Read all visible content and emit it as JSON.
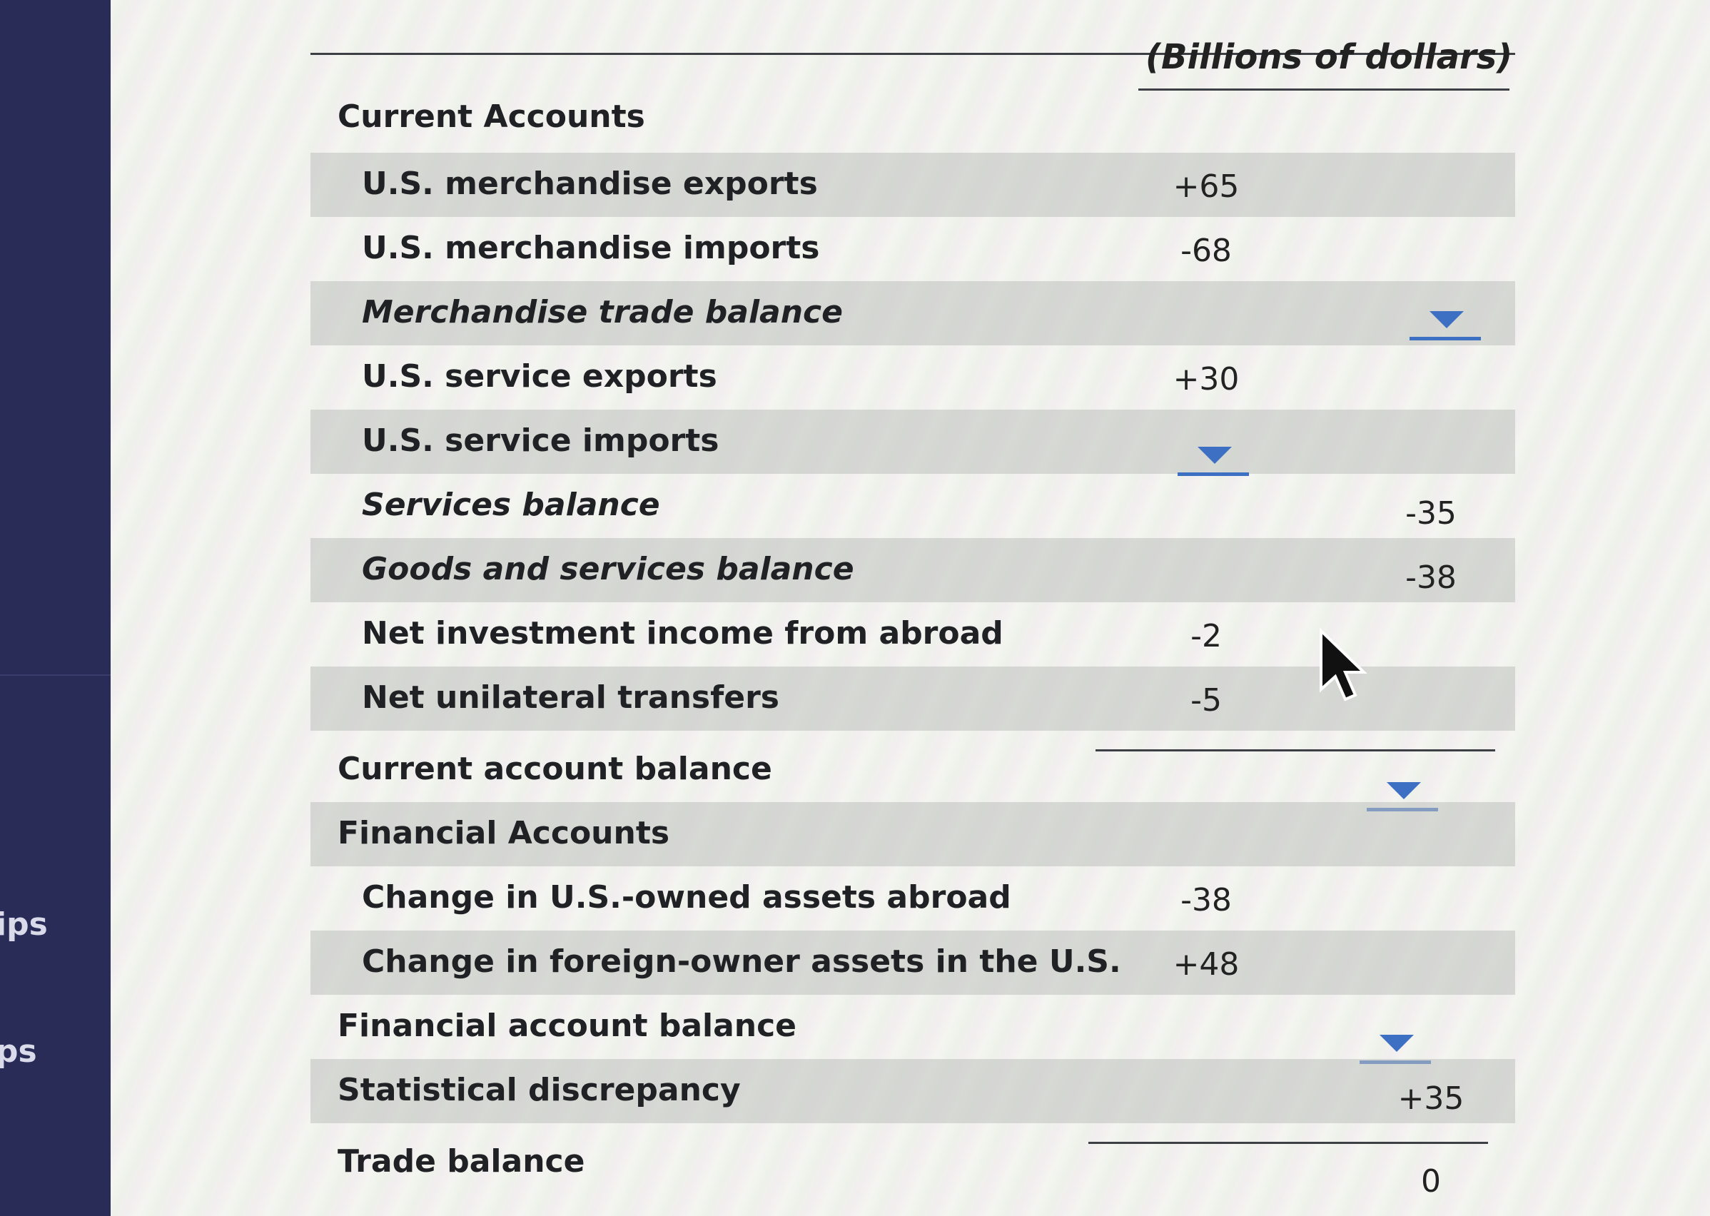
{
  "sidebar": {
    "items": [
      "ips",
      "ps"
    ]
  },
  "table": {
    "header": "(Billions of dollars)",
    "rows": [
      {
        "label": "Current Accounts",
        "v1": "",
        "v2": ""
      },
      {
        "label": "U.S. merchandise exports",
        "v1": "+65",
        "v2": ""
      },
      {
        "label": "U.S. merchandise imports",
        "v1": "-68",
        "v2": ""
      },
      {
        "label": "Merchandise trade balance",
        "v1": "",
        "v2": ""
      },
      {
        "label": "U.S. service exports",
        "v1": "+30",
        "v2": ""
      },
      {
        "label": "U.S. service imports",
        "v1": "",
        "v2": ""
      },
      {
        "label": "Services balance",
        "v1": "",
        "v2": "-35"
      },
      {
        "label": "Goods and services balance",
        "v1": "",
        "v2": "-38"
      },
      {
        "label": "Net investment income from abroad",
        "v1": "-2",
        "v2": ""
      },
      {
        "label": "Net unilateral transfers",
        "v1": "-5",
        "v2": ""
      },
      {
        "label": "Current account balance",
        "v1": "",
        "v2": ""
      },
      {
        "label": "Financial Accounts",
        "v1": "",
        "v2": ""
      },
      {
        "label": "Change in U.S.-owned assets abroad",
        "v1": "-38",
        "v2": ""
      },
      {
        "label": "Change in foreign-owner assets in the U.S.",
        "v1": "+48",
        "v2": ""
      },
      {
        "label": "Financial account balance",
        "v1": "",
        "v2": ""
      },
      {
        "label": "Statistical discrepancy",
        "v1": "",
        "v2": "+35"
      },
      {
        "label": "Trade balance",
        "v1": "",
        "v2": "0"
      }
    ]
  },
  "colors": {
    "sidebar": "#2a2c58",
    "dropdown": "#3d6fc2",
    "text": "#202124"
  },
  "icons": {
    "dropdown": "dropdown-arrow-icon",
    "cursor": "mouse-pointer-icon"
  }
}
